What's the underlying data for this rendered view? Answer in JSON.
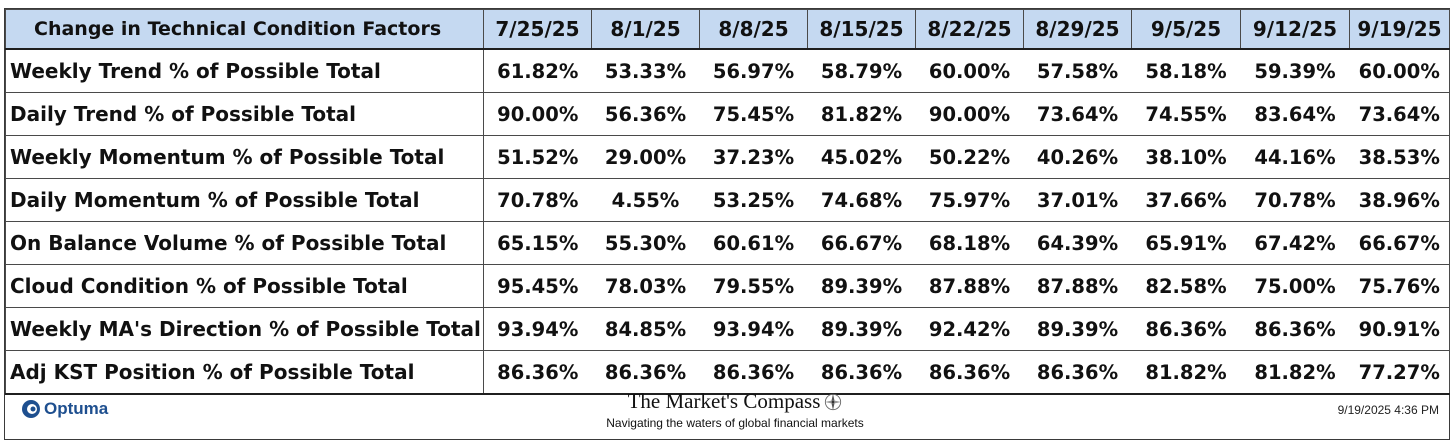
{
  "table": {
    "header": "Change in Technical Condition Factors",
    "dates": [
      "7/25/25",
      "8/1/25",
      "8/8/25",
      "8/15/25",
      "8/22/25",
      "8/29/25",
      "9/5/25",
      "9/12/25",
      "9/19/25"
    ],
    "rows": [
      {
        "label": "Weekly Trend % of Possible Total",
        "values": [
          "61.82%",
          "53.33%",
          "56.97%",
          "58.79%",
          "60.00%",
          "57.58%",
          "58.18%",
          "59.39%",
          "60.00%"
        ]
      },
      {
        "label": "Daily Trend % of Possible Total",
        "values": [
          "90.00%",
          "56.36%",
          "75.45%",
          "81.82%",
          "90.00%",
          "73.64%",
          "74.55%",
          "83.64%",
          "73.64%"
        ]
      },
      {
        "label": "Weekly Momentum % of Possible Total",
        "values": [
          "51.52%",
          "29.00%",
          "37.23%",
          "45.02%",
          "50.22%",
          "40.26%",
          "38.10%",
          "44.16%",
          "38.53%"
        ]
      },
      {
        "label": "Daily Momentum % of Possible Total",
        "values": [
          "70.78%",
          "4.55%",
          "53.25%",
          "74.68%",
          "75.97%",
          "37.01%",
          "37.66%",
          "70.78%",
          "38.96%"
        ]
      },
      {
        "label": "On Balance Volume % of Possible Total",
        "values": [
          "65.15%",
          "55.30%",
          "60.61%",
          "66.67%",
          "68.18%",
          "64.39%",
          "65.91%",
          "67.42%",
          "66.67%"
        ]
      },
      {
        "label": "Cloud Condition % of Possible Total",
        "values": [
          "95.45%",
          "78.03%",
          "79.55%",
          "89.39%",
          "87.88%",
          "87.88%",
          "82.58%",
          "75.00%",
          "75.76%"
        ]
      },
      {
        "label": "Weekly MA's Direction % of Possible Total",
        "values": [
          "93.94%",
          "84.85%",
          "93.94%",
          "89.39%",
          "92.42%",
          "89.39%",
          "86.36%",
          "86.36%",
          "90.91%"
        ]
      },
      {
        "label": "Adj KST Position % of Possible Total",
        "values": [
          "86.36%",
          "86.36%",
          "86.36%",
          "86.36%",
          "86.36%",
          "86.36%",
          "81.82%",
          "81.82%",
          "77.27%"
        ]
      }
    ]
  },
  "footer": {
    "optuma_text": "Optuma",
    "optuma_icon": "optuma-logo-icon",
    "compass_title": "The Market's Compass",
    "compass_icon": "compass-rose-icon",
    "compass_tagline": "Navigating the waters of global financial markets",
    "timestamp": "9/19/2025 4:36 PM"
  },
  "colors": {
    "header_background": "#c5d9f1",
    "brand_blue": "#1e4f8f"
  }
}
